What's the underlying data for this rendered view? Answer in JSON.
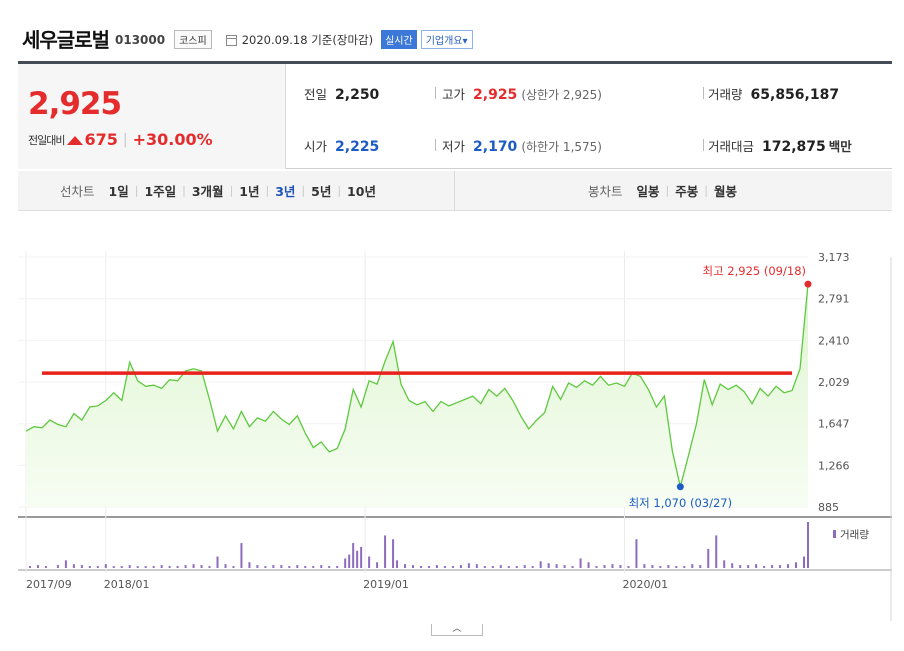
{
  "header": {
    "name": "세우글로벌",
    "code": "013000",
    "market": "코스피",
    "as_of": "2020.09.18 기준(장마감)",
    "realtime_label": "실시간",
    "company_label": "기업개요",
    "company_arrow": "▾"
  },
  "quote": {
    "price": "2,925",
    "change_label": "전일대비",
    "change_abs": "675",
    "change_pct": "+30.00%",
    "prev_close_label": "전일",
    "prev_close": "2,250",
    "high_label": "고가",
    "high": "2,925",
    "upper_limit": "(상한가 2,925)",
    "volume_label": "거래량",
    "volume": "65,856,187",
    "open_label": "시가",
    "open": "2,225",
    "low_label": "저가",
    "low": "2,170",
    "lower_limit": "(하한가 1,575)",
    "amount_label": "거래대금",
    "amount": "172,875",
    "amount_unit": "백만"
  },
  "period_bar": {
    "line_label": "선차트",
    "line_periods": [
      "1일",
      "1주일",
      "3개월",
      "1년",
      "3년",
      "5년",
      "10년"
    ],
    "active_line_period": "3년",
    "candle_label": "봉차트",
    "candle_periods": [
      "일봉",
      "주봉",
      "월봉"
    ]
  },
  "colors": {
    "up": "#e52c2c",
    "down": "#1d5bc4",
    "line": "#5ec93f",
    "area": "#dff5d2",
    "volume": "#8e6bbd",
    "resistance": "#e8221d"
  },
  "collapse_icon": "caret-up-icon",
  "chart_data": {
    "type": "area",
    "y_ticks": [
      3173,
      2791,
      2410,
      2029,
      1647,
      1266,
      885
    ],
    "ylim": [
      885,
      3173
    ],
    "x_tick_labels": [
      "2017/09",
      "2018/01",
      "2019/01",
      "2020/01"
    ],
    "x_tick_index": [
      0,
      20,
      85,
      150
    ],
    "high_annotation": "최고 2,925 (09/18)",
    "low_annotation": "최저 1,070 (03/27)",
    "high_point": {
      "index": 196,
      "value": 2925
    },
    "low_point": {
      "index": 164,
      "value": 1070
    },
    "resistance_level": 2110,
    "resistance_from_index": 4,
    "resistance_to_index": 192,
    "volume_legend": "거래량",
    "anchors": [
      [
        0,
        1580
      ],
      [
        2,
        1620
      ],
      [
        4,
        1610
      ],
      [
        6,
        1680
      ],
      [
        8,
        1640
      ],
      [
        10,
        1620
      ],
      [
        12,
        1740
      ],
      [
        14,
        1680
      ],
      [
        16,
        1800
      ],
      [
        18,
        1810
      ],
      [
        20,
        1860
      ],
      [
        22,
        1930
      ],
      [
        24,
        1860
      ],
      [
        26,
        2210
      ],
      [
        28,
        2040
      ],
      [
        30,
        1990
      ],
      [
        32,
        2000
      ],
      [
        34,
        1970
      ],
      [
        36,
        2050
      ],
      [
        38,
        2040
      ],
      [
        40,
        2130
      ],
      [
        42,
        2150
      ],
      [
        44,
        2130
      ],
      [
        46,
        1870
      ],
      [
        48,
        1580
      ],
      [
        50,
        1720
      ],
      [
        52,
        1600
      ],
      [
        54,
        1760
      ],
      [
        56,
        1620
      ],
      [
        58,
        1700
      ],
      [
        60,
        1670
      ],
      [
        62,
        1760
      ],
      [
        64,
        1690
      ],
      [
        66,
        1640
      ],
      [
        68,
        1720
      ],
      [
        70,
        1560
      ],
      [
        72,
        1430
      ],
      [
        74,
        1480
      ],
      [
        76,
        1390
      ],
      [
        78,
        1420
      ],
      [
        80,
        1600
      ],
      [
        82,
        1960
      ],
      [
        84,
        1800
      ],
      [
        86,
        2040
      ],
      [
        88,
        2010
      ],
      [
        90,
        2220
      ],
      [
        92,
        2400
      ],
      [
        94,
        2010
      ],
      [
        96,
        1860
      ],
      [
        98,
        1820
      ],
      [
        100,
        1850
      ],
      [
        102,
        1760
      ],
      [
        104,
        1850
      ],
      [
        106,
        1810
      ],
      [
        108,
        1840
      ],
      [
        110,
        1870
      ],
      [
        112,
        1900
      ],
      [
        114,
        1830
      ],
      [
        116,
        1960
      ],
      [
        118,
        1900
      ],
      [
        120,
        1970
      ],
      [
        122,
        1860
      ],
      [
        124,
        1720
      ],
      [
        126,
        1600
      ],
      [
        128,
        1680
      ],
      [
        130,
        1750
      ],
      [
        132,
        1990
      ],
      [
        134,
        1870
      ],
      [
        136,
        2020
      ],
      [
        138,
        1980
      ],
      [
        140,
        2040
      ],
      [
        142,
        2000
      ],
      [
        144,
        2080
      ],
      [
        146,
        2000
      ],
      [
        148,
        2020
      ],
      [
        150,
        1990
      ],
      [
        152,
        2110
      ],
      [
        154,
        2080
      ],
      [
        156,
        1960
      ],
      [
        158,
        1800
      ],
      [
        160,
        1900
      ],
      [
        162,
        1400
      ],
      [
        164,
        1070
      ],
      [
        166,
        1350
      ],
      [
        168,
        1640
      ],
      [
        170,
        2050
      ],
      [
        172,
        1820
      ],
      [
        174,
        2010
      ],
      [
        176,
        1960
      ],
      [
        178,
        2000
      ],
      [
        180,
        1940
      ],
      [
        182,
        1830
      ],
      [
        184,
        1970
      ],
      [
        186,
        1900
      ],
      [
        188,
        1990
      ],
      [
        190,
        1930
      ],
      [
        192,
        1950
      ],
      [
        194,
        2150
      ],
      [
        196,
        2925
      ]
    ],
    "volume": [
      [
        1,
        2
      ],
      [
        3,
        3
      ],
      [
        5,
        2
      ],
      [
        8,
        3
      ],
      [
        10,
        8
      ],
      [
        12,
        4
      ],
      [
        14,
        3
      ],
      [
        16,
        2
      ],
      [
        18,
        2
      ],
      [
        20,
        4
      ],
      [
        22,
        2
      ],
      [
        24,
        2
      ],
      [
        26,
        3
      ],
      [
        28,
        2
      ],
      [
        30,
        2
      ],
      [
        32,
        2
      ],
      [
        34,
        3
      ],
      [
        36,
        2
      ],
      [
        38,
        2
      ],
      [
        40,
        3
      ],
      [
        42,
        4
      ],
      [
        44,
        3
      ],
      [
        46,
        2
      ],
      [
        48,
        12
      ],
      [
        50,
        4
      ],
      [
        52,
        2
      ],
      [
        54,
        26
      ],
      [
        56,
        6
      ],
      [
        58,
        3
      ],
      [
        60,
        2
      ],
      [
        62,
        3
      ],
      [
        64,
        3
      ],
      [
        66,
        2
      ],
      [
        68,
        3
      ],
      [
        70,
        2
      ],
      [
        72,
        2
      ],
      [
        74,
        3
      ],
      [
        76,
        2
      ],
      [
        78,
        2
      ],
      [
        80,
        10
      ],
      [
        81,
        14
      ],
      [
        82,
        26
      ],
      [
        83,
        18
      ],
      [
        84,
        22
      ],
      [
        86,
        12
      ],
      [
        88,
        6
      ],
      [
        90,
        34
      ],
      [
        92,
        30
      ],
      [
        93,
        8
      ],
      [
        95,
        4
      ],
      [
        97,
        3
      ],
      [
        99,
        2
      ],
      [
        101,
        2
      ],
      [
        103,
        3
      ],
      [
        105,
        2
      ],
      [
        107,
        2
      ],
      [
        109,
        3
      ],
      [
        111,
        5
      ],
      [
        113,
        4
      ],
      [
        115,
        2
      ],
      [
        117,
        2
      ],
      [
        119,
        3
      ],
      [
        121,
        2
      ],
      [
        123,
        2
      ],
      [
        125,
        3
      ],
      [
        127,
        2
      ],
      [
        129,
        7
      ],
      [
        131,
        5
      ],
      [
        133,
        4
      ],
      [
        135,
        3
      ],
      [
        137,
        2
      ],
      [
        139,
        10
      ],
      [
        141,
        6
      ],
      [
        143,
        2
      ],
      [
        145,
        3
      ],
      [
        147,
        4
      ],
      [
        149,
        3
      ],
      [
        151,
        2
      ],
      [
        153,
        30
      ],
      [
        155,
        4
      ],
      [
        157,
        3
      ],
      [
        159,
        2
      ],
      [
        161,
        3
      ],
      [
        163,
        2
      ],
      [
        165,
        2
      ],
      [
        167,
        4
      ],
      [
        169,
        3
      ],
      [
        171,
        20
      ],
      [
        173,
        34
      ],
      [
        175,
        8
      ],
      [
        177,
        5
      ],
      [
        179,
        3
      ],
      [
        181,
        3
      ],
      [
        183,
        4
      ],
      [
        185,
        2
      ],
      [
        187,
        3
      ],
      [
        189,
        3
      ],
      [
        191,
        4
      ],
      [
        193,
        6
      ],
      [
        195,
        12
      ],
      [
        196,
        48
      ]
    ]
  }
}
